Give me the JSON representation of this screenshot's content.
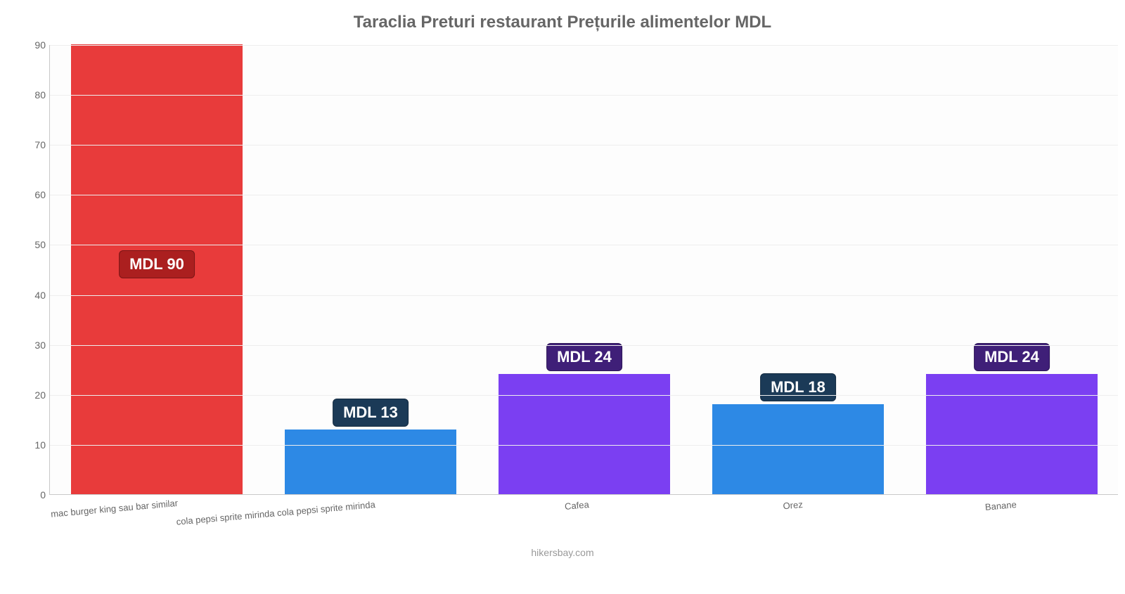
{
  "chart": {
    "type": "bar",
    "title": "Taraclia Preturi restaurant Prețurile alimentelor MDL",
    "title_color": "#666666",
    "title_fontsize": 24,
    "background_color": "#fdfdfd",
    "grid_color": "#eeeeee",
    "axis_color": "#c9c9c9",
    "label_color": "#666666",
    "label_fontsize": 13,
    "tick_fontsize": 14,
    "ylim": [
      0,
      90
    ],
    "ytick_step": 10,
    "bar_width_pct": 16,
    "categories": [
      "mac burger king sau bar similar",
      "cola pepsi sprite mirinda cola pepsi sprite mirinda",
      "Cafea",
      "Orez",
      "Banane"
    ],
    "values": [
      90,
      13,
      24,
      18,
      24
    ],
    "value_labels": [
      "MDL 90",
      "MDL 13",
      "MDL 24",
      "MDL 18",
      "MDL 24"
    ],
    "bar_colors": [
      "#e83b3b",
      "#2d89e5",
      "#7b3ff2",
      "#2d89e5",
      "#7b3ff2"
    ],
    "badges": [
      {
        "bg": "#ab1f1f",
        "fg": "#ffffff",
        "border": "#7a1515"
      },
      {
        "bg": "#1b3a57",
        "fg": "#ffffff",
        "border": "#122a40"
      },
      {
        "bg": "#3f1f78",
        "fg": "#ffffff",
        "border": "#2c1556"
      },
      {
        "bg": "#1b3a57",
        "fg": "#ffffff",
        "border": "#122a40"
      },
      {
        "bg": "#3f1f78",
        "fg": "#ffffff",
        "border": "#2c1556"
      }
    ],
    "badge_fontsize": 22,
    "value_above_threshold": 30,
    "attribution": "hikersbay.com",
    "attribution_color": "#999999"
  }
}
